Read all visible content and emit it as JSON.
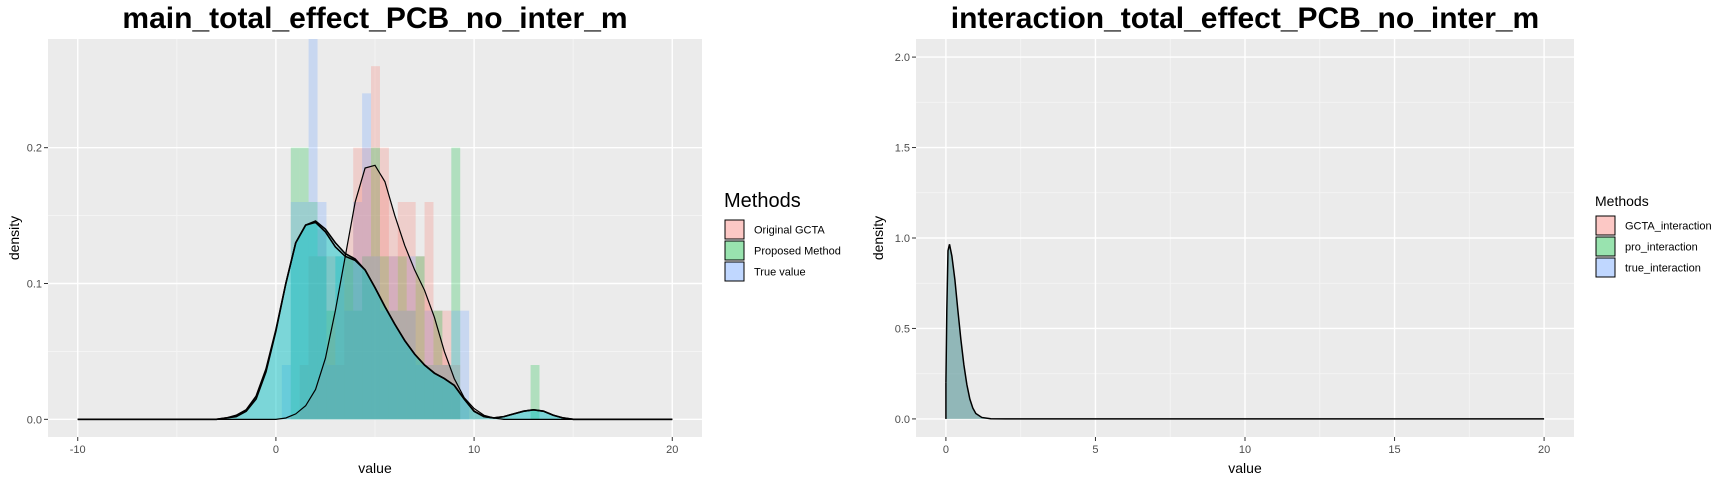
{
  "chart_data": [
    {
      "type": "histogram+density",
      "title": "main_total_effect_PCB_no_inter_m",
      "xlabel": "value",
      "ylabel": "density",
      "xlim": [
        -11.5,
        21.5
      ],
      "ylim": [
        -0.013,
        0.28
      ],
      "xticks": [
        -10,
        0,
        10,
        20
      ],
      "yticks": [
        0.0,
        0.1,
        0.2
      ],
      "ytick_labels": [
        "0.0",
        "0.1",
        "0.2"
      ],
      "grid": true,
      "legend_position": "right",
      "legend_title": "Methods",
      "bin_width": 0.45,
      "series": [
        {
          "name": "Original GCTA",
          "color": "#F8766D",
          "bins": [
            [
              1.2,
              0.04
            ],
            [
              1.65,
              0.12
            ],
            [
              2.1,
              0.14
            ],
            [
              2.55,
              0.12
            ],
            [
              3.0,
              0.04
            ],
            [
              3.45,
              0.12
            ],
            [
              3.9,
              0.2
            ],
            [
              4.35,
              0.2
            ],
            [
              4.8,
              0.26
            ],
            [
              5.25,
              0.2
            ],
            [
              5.7,
              0.12
            ],
            [
              6.15,
              0.16
            ],
            [
              6.6,
              0.16
            ],
            [
              7.05,
              0.12
            ],
            [
              7.5,
              0.16
            ],
            [
              7.95,
              0.08
            ],
            [
              8.4,
              0.08
            ],
            [
              8.85,
              0.04
            ]
          ]
        },
        {
          "name": "Proposed Method",
          "color": "#00BA38",
          "bins": [
            [
              0.75,
              0.2
            ],
            [
              1.2,
              0.2
            ],
            [
              1.65,
              0.16
            ],
            [
              2.1,
              0.12
            ],
            [
              2.55,
              0.08
            ],
            [
              3.0,
              0.12
            ],
            [
              3.45,
              0.12
            ],
            [
              3.9,
              0.08
            ],
            [
              4.35,
              0.12
            ],
            [
              4.8,
              0.2
            ],
            [
              5.25,
              0.12
            ],
            [
              5.7,
              0.08
            ],
            [
              6.15,
              0.12
            ],
            [
              6.6,
              0.08
            ],
            [
              7.05,
              0.12
            ],
            [
              7.5,
              0.04
            ],
            [
              7.95,
              0.08
            ],
            [
              8.4,
              0.04
            ],
            [
              8.85,
              0.2
            ],
            [
              12.85,
              0.04
            ]
          ]
        },
        {
          "name": "True value",
          "color": "#619CFF",
          "bins": [
            [
              0.3,
              0.04
            ],
            [
              0.75,
              0.16
            ],
            [
              1.2,
              0.16
            ],
            [
              1.65,
              0.28
            ],
            [
              2.1,
              0.16
            ],
            [
              2.55,
              0.04
            ],
            [
              3.0,
              0.12
            ],
            [
              3.45,
              0.08
            ],
            [
              3.9,
              0.16
            ],
            [
              4.35,
              0.24
            ],
            [
              4.8,
              0.12
            ],
            [
              5.25,
              0.08
            ],
            [
              5.7,
              0.12
            ],
            [
              6.15,
              0.08
            ],
            [
              6.6,
              0.12
            ],
            [
              7.05,
              0.04
            ],
            [
              7.5,
              0.08
            ],
            [
              7.95,
              0.04
            ],
            [
              8.4,
              0.04
            ],
            [
              8.85,
              0.08
            ],
            [
              9.3,
              0.08
            ]
          ]
        }
      ],
      "density_curves": [
        {
          "name": "Original GCTA",
          "points": [
            [
              -10,
              0
            ],
            [
              0,
              0
            ],
            [
              0.5,
              0.001
            ],
            [
              1,
              0.004
            ],
            [
              1.5,
              0.01
            ],
            [
              2,
              0.022
            ],
            [
              2.5,
              0.045
            ],
            [
              3,
              0.08
            ],
            [
              3.5,
              0.12
            ],
            [
              4,
              0.16
            ],
            [
              4.5,
              0.185
            ],
            [
              5,
              0.187
            ],
            [
              5.5,
              0.175
            ],
            [
              6,
              0.15
            ],
            [
              6.5,
              0.128
            ],
            [
              7,
              0.11
            ],
            [
              7.5,
              0.095
            ],
            [
              8,
              0.075
            ],
            [
              8.5,
              0.05
            ],
            [
              9,
              0.03
            ],
            [
              9.5,
              0.016
            ],
            [
              10,
              0.008
            ],
            [
              10.5,
              0.003
            ],
            [
              11,
              0.001
            ],
            [
              11.5,
              0
            ],
            [
              20,
              0
            ]
          ]
        },
        {
          "name": "Proposed Method",
          "points": [
            [
              -10,
              0
            ],
            [
              -3,
              0
            ],
            [
              -2.5,
              0.001
            ],
            [
              -2,
              0.002
            ],
            [
              -1.5,
              0.006
            ],
            [
              -1,
              0.015
            ],
            [
              -0.5,
              0.035
            ],
            [
              0,
              0.065
            ],
            [
              0.5,
              0.1
            ],
            [
              1,
              0.13
            ],
            [
              1.5,
              0.143
            ],
            [
              2,
              0.145
            ],
            [
              2.5,
              0.138
            ],
            [
              3,
              0.127
            ],
            [
              3.5,
              0.12
            ],
            [
              4,
              0.117
            ],
            [
              4.5,
              0.11
            ],
            [
              5,
              0.097
            ],
            [
              5.5,
              0.083
            ],
            [
              6,
              0.07
            ],
            [
              6.5,
              0.058
            ],
            [
              7,
              0.048
            ],
            [
              7.5,
              0.04
            ],
            [
              8,
              0.034
            ],
            [
              8.5,
              0.03
            ],
            [
              9,
              0.025
            ],
            [
              9.5,
              0.015
            ],
            [
              10,
              0.006
            ],
            [
              10.5,
              0.002
            ],
            [
              11,
              0.001
            ],
            [
              11.5,
              0.002
            ],
            [
              12,
              0.004
            ],
            [
              12.5,
              0.006
            ],
            [
              13,
              0.007
            ],
            [
              13.5,
              0.006
            ],
            [
              14,
              0.003
            ],
            [
              14.5,
              0.001
            ],
            [
              15,
              0
            ],
            [
              20,
              0
            ]
          ]
        },
        {
          "name": "True value",
          "points": [
            [
              -10,
              0
            ],
            [
              -3,
              0
            ],
            [
              -2.5,
              0.001
            ],
            [
              -2,
              0.003
            ],
            [
              -1.5,
              0.007
            ],
            [
              -1,
              0.017
            ],
            [
              -0.5,
              0.037
            ],
            [
              0,
              0.066
            ],
            [
              0.5,
              0.1
            ],
            [
              1,
              0.13
            ],
            [
              1.5,
              0.143
            ],
            [
              2,
              0.146
            ],
            [
              2.5,
              0.14
            ],
            [
              3,
              0.13
            ],
            [
              3.5,
              0.122
            ],
            [
              4,
              0.118
            ],
            [
              4.5,
              0.11
            ],
            [
              5,
              0.097
            ],
            [
              5.5,
              0.083
            ],
            [
              6,
              0.07
            ],
            [
              6.5,
              0.058
            ],
            [
              7,
              0.048
            ],
            [
              7.5,
              0.04
            ],
            [
              8,
              0.034
            ],
            [
              8.5,
              0.03
            ],
            [
              9,
              0.025
            ],
            [
              9.5,
              0.015
            ],
            [
              10,
              0.006
            ],
            [
              10.5,
              0.002
            ],
            [
              11,
              0.001
            ],
            [
              11.5,
              0.002
            ],
            [
              12,
              0.004
            ],
            [
              12.5,
              0.006
            ],
            [
              13,
              0.007
            ],
            [
              13.5,
              0.006
            ],
            [
              14,
              0.003
            ],
            [
              14.5,
              0.001
            ],
            [
              15,
              0
            ],
            [
              20,
              0
            ]
          ]
        }
      ]
    },
    {
      "type": "density",
      "title": "interaction_total_effect_PCB_no_inter_m",
      "xlabel": "value",
      "ylabel": "density",
      "xlim": [
        -1,
        21
      ],
      "ylim": [
        -0.1,
        2.1
      ],
      "xticks": [
        0,
        5,
        10,
        15,
        20
      ],
      "yticks": [
        0.0,
        0.5,
        1.0,
        1.5,
        2.0
      ],
      "ytick_labels": [
        "0.0",
        "0.5",
        "1.0",
        "1.5",
        "2.0"
      ],
      "grid": true,
      "legend_position": "right",
      "legend_title": "Methods",
      "series": [
        {
          "name": "GCTA_interaction",
          "color": "#F8766D"
        },
        {
          "name": "pro_interaction",
          "color": "#00BA38"
        },
        {
          "name": "true_interaction",
          "color": "#619CFF"
        }
      ],
      "density_curve": [
        [
          0,
          0.2
        ],
        [
          0.03,
          0.6
        ],
        [
          0.07,
          0.93
        ],
        [
          0.12,
          0.965
        ],
        [
          0.2,
          0.9
        ],
        [
          0.3,
          0.77
        ],
        [
          0.4,
          0.6
        ],
        [
          0.5,
          0.44
        ],
        [
          0.6,
          0.3
        ],
        [
          0.7,
          0.19
        ],
        [
          0.8,
          0.11
        ],
        [
          0.9,
          0.06
        ],
        [
          1.0,
          0.03
        ],
        [
          1.2,
          0.008
        ],
        [
          1.5,
          0.001
        ],
        [
          2,
          0
        ],
        [
          20,
          0
        ]
      ]
    }
  ]
}
